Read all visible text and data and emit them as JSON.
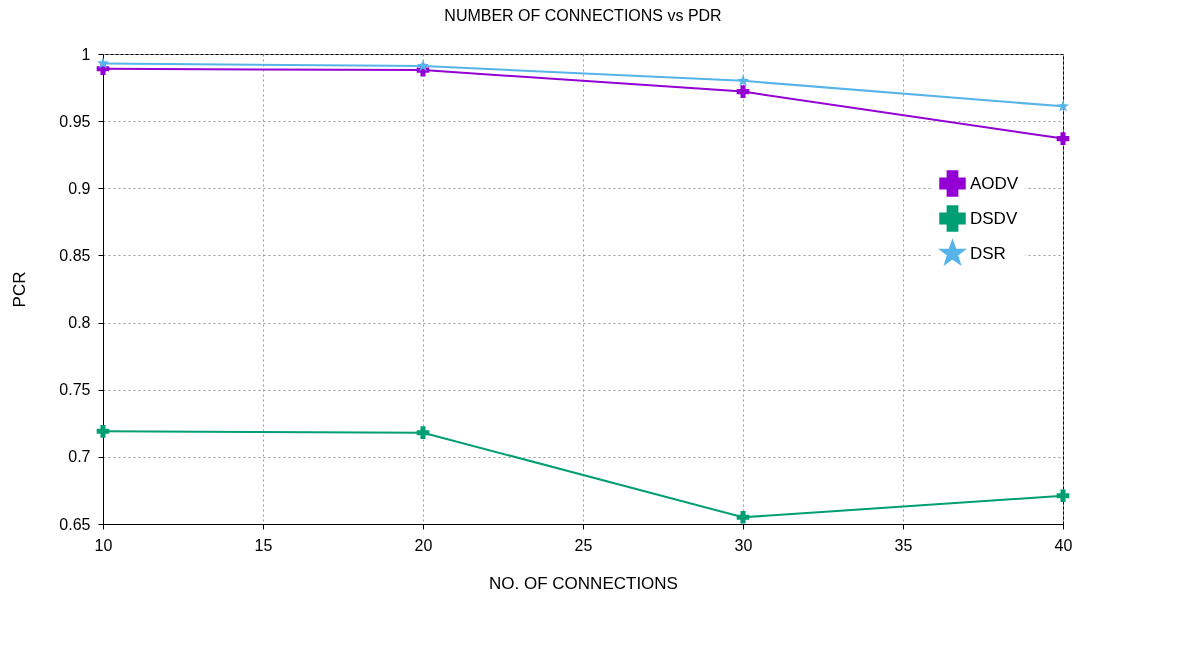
{
  "chart_data": {
    "type": "line",
    "title": "NUMBER OF CONNECTIONS vs PDR",
    "xlabel": "NO. OF CONNECTIONS",
    "ylabel": "PCR",
    "x": [
      10,
      20,
      30,
      40
    ],
    "series": [
      {
        "name": "AODV",
        "color": "#9400d3",
        "marker": "cross",
        "values": [
          0.989,
          0.988,
          0.972,
          0.937
        ]
      },
      {
        "name": "DSDV",
        "color": "#009e73",
        "marker": "cross",
        "values": [
          0.719,
          0.718,
          0.655,
          0.671
        ]
      },
      {
        "name": "DSR",
        "color": "#56b4e9",
        "marker": "star",
        "values": [
          0.993,
          0.991,
          0.98,
          0.961
        ]
      }
    ],
    "xlim": [
      10,
      40
    ],
    "xticks": [
      10,
      15,
      20,
      25,
      30,
      35,
      40
    ],
    "ylim": [
      0.65,
      1
    ],
    "yticks": [
      0.65,
      0.7,
      0.75,
      0.8,
      0.85,
      0.9,
      0.95,
      1
    ],
    "grid": true,
    "legend": "top right",
    "line_style": "solid"
  }
}
